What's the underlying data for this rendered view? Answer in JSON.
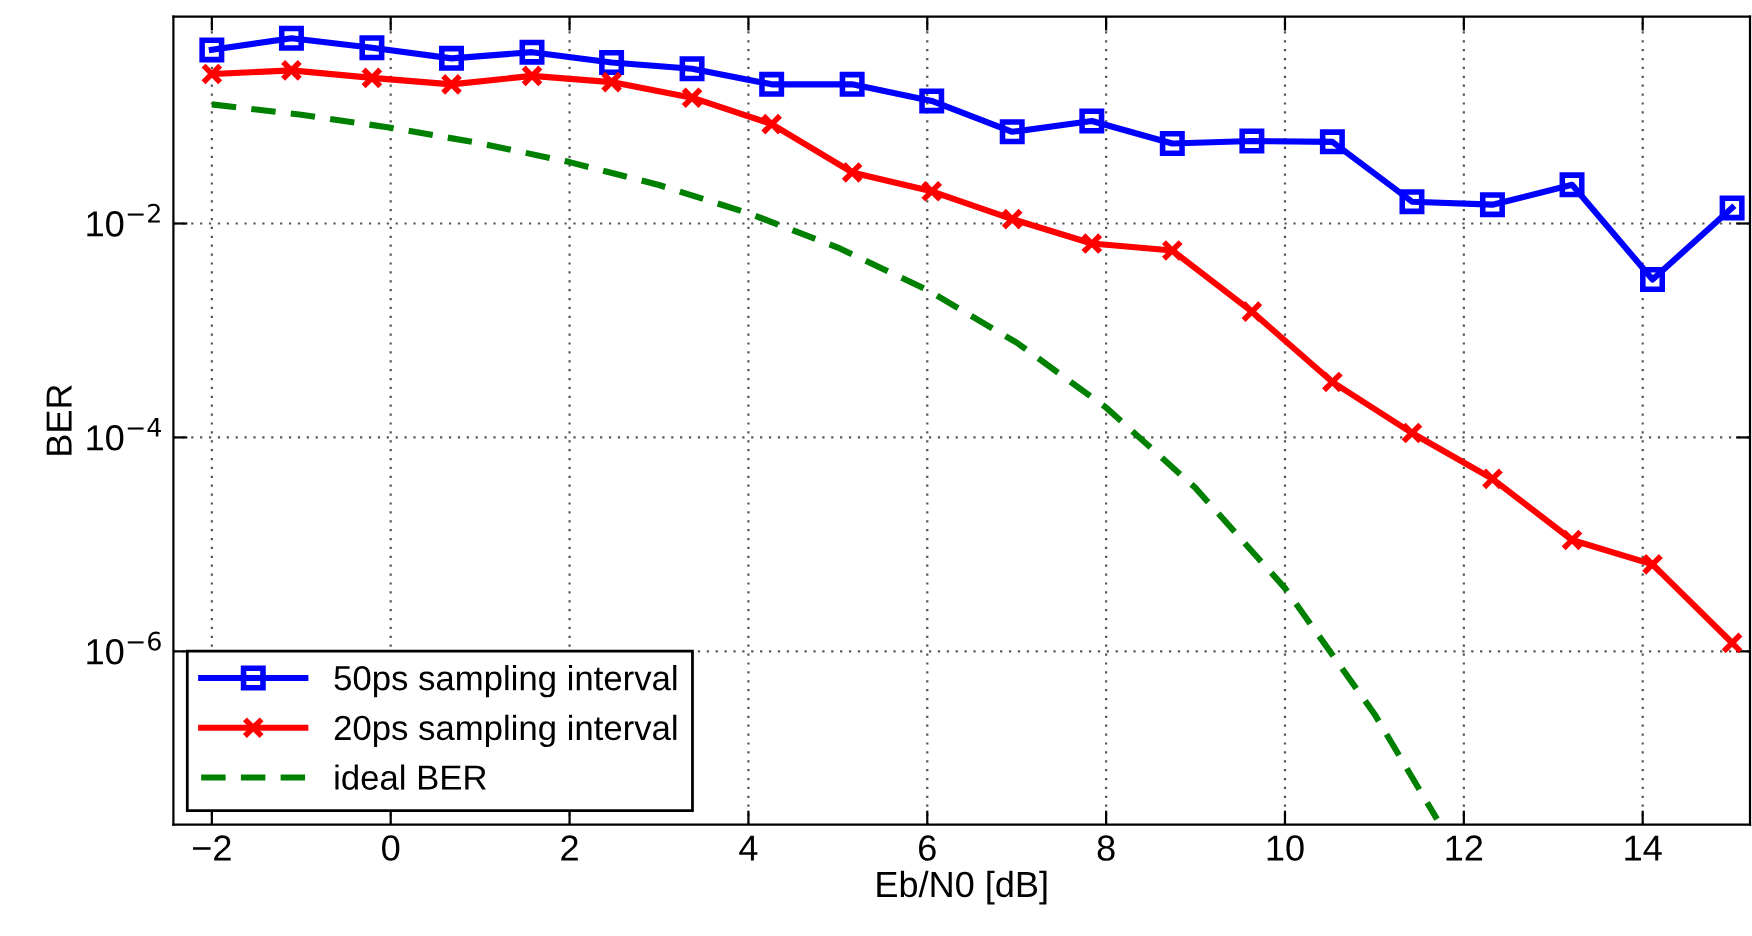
{
  "chart_data": {
    "type": "line",
    "xlabel": "Eb/N0 [dB]",
    "ylabel": "BER",
    "log": "y",
    "x": [
      -2,
      -1.11,
      -0.21,
      0.68,
      1.58,
      2.47,
      3.37,
      4.26,
      5.16,
      6.05,
      6.95,
      7.84,
      8.74,
      9.63,
      10.53,
      11.42,
      12.32,
      13.21,
      14.11,
      15
    ],
    "series": [
      {
        "name": "50ps sampling interval",
        "color": "#0000ff",
        "marker": "square",
        "line_style": "solid",
        "values": [
          0.42,
          0.54,
          0.44,
          0.35,
          0.4,
          0.32,
          0.28,
          0.2,
          0.2,
          0.14,
          0.072,
          0.091,
          0.056,
          0.059,
          0.058,
          0.016,
          0.015,
          0.023,
          0.003,
          0.014
        ]
      },
      {
        "name": "20ps sampling interval",
        "color": "#ff0000",
        "marker": "cross",
        "line_style": "solid",
        "values": [
          0.25,
          0.27,
          0.23,
          0.2,
          0.24,
          0.21,
          0.15,
          0.085,
          0.03,
          0.02,
          0.011,
          0.0065,
          0.0056,
          0.0015,
          0.00033,
          0.00011,
          4.1e-05,
          1.1e-05,
          6.5e-06,
          1.2e-06
        ]
      },
      {
        "name": "ideal BER",
        "color": "#008000",
        "marker": "none",
        "line_style": "dashed",
        "x": [
          -2,
          -1,
          0,
          1,
          2,
          3,
          4,
          5,
          6,
          7,
          8,
          9,
          10,
          11,
          11.7
        ],
        "values": [
          0.13,
          0.104,
          0.0786,
          0.0563,
          0.0375,
          0.0229,
          0.0125,
          0.00596,
          0.00239,
          0.00077,
          0.00019,
          3.36e-05,
          3.9e-06,
          2.6e-07,
          2.7e-08
        ]
      }
    ],
    "xlim": [
      -2.43,
      15.2
    ],
    "ylim": [
      2.4e-08,
      0.86
    ],
    "xticks": [
      {
        "value": -2,
        "label": "−2"
      },
      0,
      2,
      4,
      6,
      8,
      10,
      12,
      14
    ],
    "yticks": [
      {
        "value": 0.01,
        "label": "10$^{−2}$"
      },
      {
        "value": 0.0001,
        "label": "10$^{−4}$"
      },
      {
        "value": 1e-06,
        "label": "10$^{−6}$"
      }
    ],
    "grid": true,
    "legend": "bottom left"
  }
}
